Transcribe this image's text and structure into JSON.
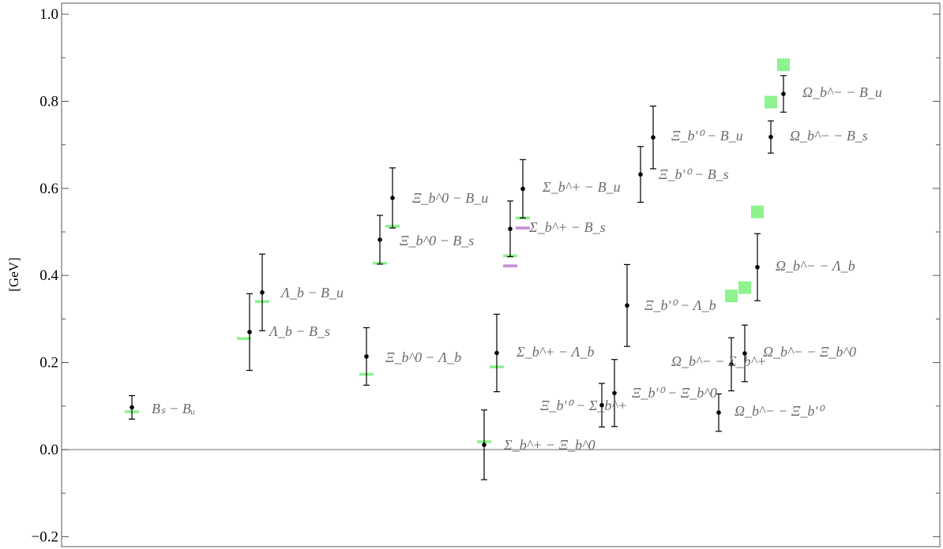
{
  "chart_data": {
    "type": "scatter",
    "title": "",
    "xlabel": "",
    "ylabel": "[GeV]",
    "ylim": [
      -0.22,
      1.02
    ],
    "yticks": [
      -0.2,
      0.0,
      0.2,
      0.4,
      0.6,
      0.8,
      1.0
    ],
    "ytick_labels": [
      "−0.2",
      "0.0",
      "0.2",
      "0.4",
      "0.6",
      "0.8",
      "1.0"
    ],
    "grid": false,
    "legend": "none",
    "colors": {
      "point": "#000000",
      "experiment": "#8ef28e",
      "alt_prediction": "#c98ed6",
      "annotation": "#6b6b6b"
    },
    "series": [
      {
        "values": [
          {
            "label": "B_s − B_u",
            "value": 0.097,
            "err_low": 0.027,
            "err_high": 0.027,
            "exp": 0.087
          },
          {
            "label": "Λ_b − B_s",
            "value": 0.27,
            "err_low": 0.088,
            "err_high": 0.088,
            "exp": 0.255
          },
          {
            "label": "Λ_b − B_u",
            "value": 0.361,
            "err_low": 0.088,
            "err_high": 0.088,
            "exp": 0.34
          },
          {
            "label": "Ξ_b^0 − Λ_b",
            "value": 0.214,
            "err_low": 0.066,
            "err_high": 0.066,
            "exp": 0.173
          },
          {
            "label": "Ξ_b^0 − B_s",
            "value": 0.482,
            "err_low": 0.056,
            "err_high": 0.056,
            "exp": 0.428
          },
          {
            "label": "Ξ_b^0 − B_u",
            "value": 0.578,
            "err_low": 0.069,
            "err_high": 0.069,
            "exp": 0.513
          },
          {
            "label": "Σ_b^+ − Ξ_b^0",
            "value": 0.011,
            "err_low": 0.08,
            "err_high": 0.08,
            "exp": 0.018
          },
          {
            "label": "Σ_b^+ − Λ_b",
            "value": 0.222,
            "err_low": 0.089,
            "err_high": 0.089,
            "exp": 0.19
          },
          {
            "label": "Σ_b^+ − B_s",
            "value": 0.507,
            "err_low": 0.064,
            "err_high": 0.064,
            "exp": 0.445,
            "alt": 0.422
          },
          {
            "label": "Σ_b^+ − B_u",
            "value": 0.599,
            "err_low": 0.067,
            "err_high": 0.067,
            "exp": 0.532,
            "alt": 0.509
          },
          {
            "label": "Ξ_bʹ⁰ − Σ_b^+",
            "value": 0.102,
            "err_low": 0.05,
            "err_high": 0.05
          },
          {
            "label": "Ξ_bʹ⁰ − Ξ_b^0",
            "value": 0.13,
            "err_low": 0.077,
            "err_high": 0.077
          },
          {
            "label": "Ξ_bʹ⁰ − Λ_b",
            "value": 0.331,
            "err_low": 0.094,
            "err_high": 0.094
          },
          {
            "label": "Ξ_bʹ⁰ − B_s",
            "value": 0.632,
            "err_low": 0.064,
            "err_high": 0.064
          },
          {
            "label": "Ξ_bʹ⁰ − B_u",
            "value": 0.717,
            "err_low": 0.072,
            "err_high": 0.072
          },
          {
            "label": "Ω_b^− − Ξ_bʹ⁰",
            "value": 0.085,
            "err_low": 0.043,
            "err_high": 0.043
          },
          {
            "label": "Ω_b^− − Σ_b^+",
            "value": 0.196,
            "err_low": 0.061,
            "err_high": 0.061,
            "exp": 0.353
          },
          {
            "label": "Ω_b^− − Ξ_b^0",
            "value": 0.221,
            "err_low": 0.065,
            "err_high": 0.065,
            "exp": 0.372
          },
          {
            "label": "Ω_b^− − Λ_b",
            "value": 0.419,
            "err_low": 0.077,
            "err_high": 0.077,
            "exp": 0.546
          },
          {
            "label": "Ω_b^− − B_s",
            "value": 0.718,
            "err_low": 0.037,
            "err_high": 0.037,
            "exp": 0.798
          },
          {
            "label": "Ω_b^− − B_u",
            "value": 0.817,
            "err_low": 0.042,
            "err_high": 0.042,
            "exp": 0.884
          }
        ]
      }
    ]
  },
  "annotations": {
    "bs_bu": "Bₛ − Bᵤ",
    "lb_bs": "Λ_b − B_s",
    "lb_bu": "Λ_b − B_u",
    "xi0_lb": "Ξ_b^0 − Λ_b",
    "xi0_bs": "Ξ_b^0 − B_s",
    "xi0_bu": "Ξ_b^0 − B_u",
    "sig_xi0": "Σ_b^+ − Ξ_b^0",
    "sig_lb": "Σ_b^+ − Λ_b",
    "sig_bs": "Σ_b^+ − B_s",
    "sig_bu": "Σ_b^+ − B_u",
    "xip_sig": "Ξ_bʹ⁰ − Σ_b^+",
    "xip_xi0": "Ξ_bʹ⁰ − Ξ_b^0",
    "xip_lb": "Ξ_bʹ⁰ − Λ_b",
    "xip_bs": "Ξ_bʹ⁰ − B_s",
    "xip_bu": "Ξ_bʹ⁰ − B_u",
    "om_xip": "Ω_b^− − Ξ_bʹ⁰",
    "om_sig": "Ω_b^− − Σ_b^+",
    "om_xi0": "Ω_b^− − Ξ_b^0",
    "om_lb": "Ω_b^− − Λ_b",
    "om_bs": "Ω_b^− − B_s",
    "om_bu": "Ω_b^− − B_u"
  }
}
